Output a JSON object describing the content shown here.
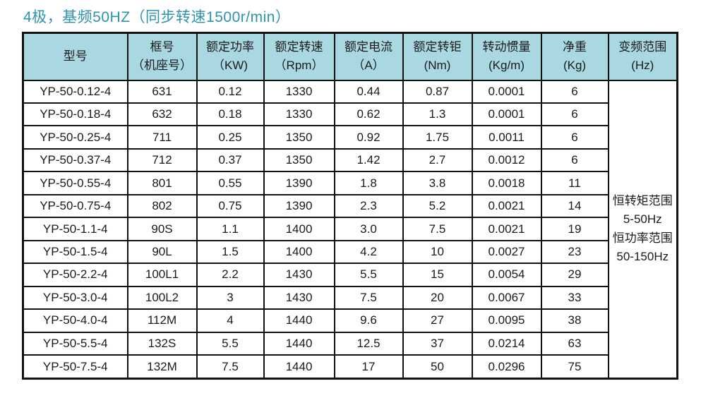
{
  "title": "4极，基频50HZ（同步转速1500r/min）",
  "colors": {
    "title_color": "#2e93af",
    "header_bg": "#a9d7e2",
    "border_color": "#111111",
    "text_color": "#1a1a1a"
  },
  "table": {
    "headers": [
      {
        "line1": "型号",
        "line2": ""
      },
      {
        "line1": "框号",
        "line2": "（机座号）"
      },
      {
        "line1": "额定功率",
        "line2": "（KW)"
      },
      {
        "line1": "额定转速",
        "line2": "（Rpm）"
      },
      {
        "line1": "额定电流",
        "line2": "（A）"
      },
      {
        "line1": "额定转钜",
        "line2": "(Nm)"
      },
      {
        "line1": "转动惯量",
        "line2": "(Kg/m)"
      },
      {
        "line1": "净重",
        "line2": "(Kg)"
      },
      {
        "line1": "变频范围",
        "line2": "(Hz)"
      }
    ],
    "rows": [
      [
        "YP-50-0.12-4",
        "631",
        "0.12",
        "1330",
        "0.44",
        "0.87",
        "0.0001",
        "6"
      ],
      [
        "YP-50-0.18-4",
        "632",
        "0.18",
        "1330",
        "0.62",
        "1.3",
        "0.0001",
        "6"
      ],
      [
        "YP-50-0.25-4",
        "711",
        "0.25",
        "1350",
        "0.92",
        "1.75",
        "0.0011",
        "6"
      ],
      [
        "YP-50-0.37-4",
        "712",
        "0.37",
        "1350",
        "1.42",
        "2.7",
        "0.0012",
        "6"
      ],
      [
        "YP-50-0.55-4",
        "801",
        "0.55",
        "1390",
        "1.8",
        "3.8",
        "0.0018",
        "11"
      ],
      [
        "YP-50-0.75-4",
        "802",
        "0.75",
        "1390",
        "2.3",
        "5.2",
        "0.0021",
        "14"
      ],
      [
        "YP-50-1.1-4",
        "90S",
        "1.1",
        "1400",
        "3.0",
        "7.5",
        "0.0021",
        "19"
      ],
      [
        "YP-50-1.5-4",
        "90L",
        "1.5",
        "1400",
        "4.2",
        "10",
        "0.0027",
        "23"
      ],
      [
        "YP-50-2.2-4",
        "100L1",
        "2.2",
        "1430",
        "5.5",
        "15",
        "0.0054",
        "29"
      ],
      [
        "YP-50-3.0-4",
        "100L2",
        "3",
        "1430",
        "7.5",
        "20",
        "0.0067",
        "33"
      ],
      [
        "YP-50-4.0-4",
        "112M",
        "4",
        "1440",
        "9.6",
        "27",
        "0.0095",
        "38"
      ],
      [
        "YP-50-5.5-4",
        "132S",
        "5.5",
        "1440",
        "12.5",
        "37",
        "0.0214",
        "63"
      ],
      [
        "YP-50-7.5-4",
        "132M",
        "7.5",
        "1440",
        "17",
        "50",
        "0.0296",
        "75"
      ]
    ],
    "freq_range_lines": [
      "恒转矩范围",
      "5-50Hz",
      "恒功率范围",
      "50-150Hz"
    ]
  }
}
